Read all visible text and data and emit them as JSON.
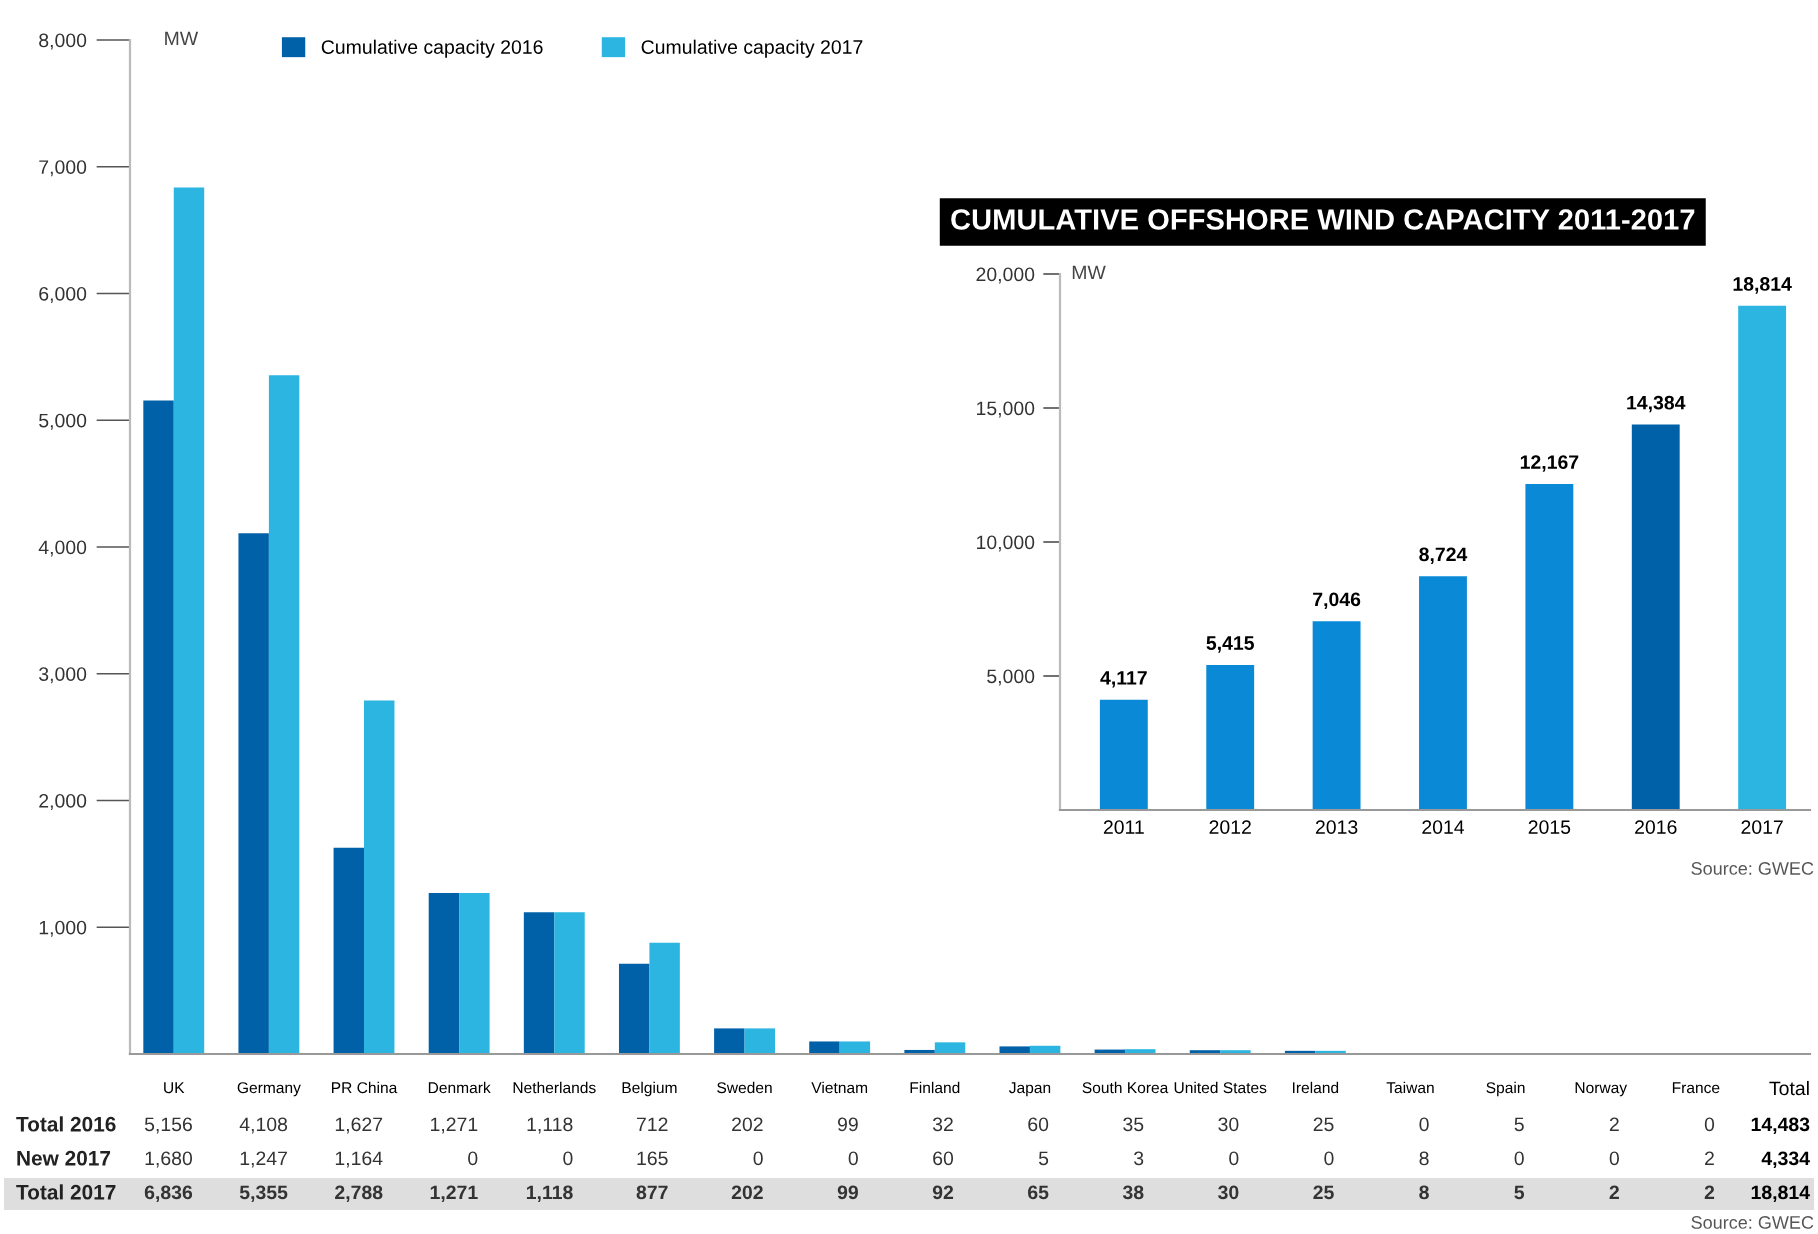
{
  "chart_data": [
    {
      "type": "bar",
      "ylabel": "MW",
      "categories": [
        "UK",
        "Germany",
        "PR China",
        "Denmark",
        "Netherlands",
        "Belgium",
        "Sweden",
        "Vietnam",
        "Finland",
        "Japan",
        "South Korea",
        "United States",
        "Ireland",
        "Taiwan",
        "Spain",
        "Norway",
        "France"
      ],
      "series": [
        {
          "name": "Cumulative capacity 2016",
          "color": "#0060a8",
          "values": [
            5156,
            4108,
            1627,
            1271,
            1118,
            712,
            202,
            99,
            32,
            60,
            35,
            30,
            25,
            0,
            5,
            2,
            0
          ],
          "value_labels": [
            "5,156",
            "4,108",
            "1,627",
            "1,271",
            "1,118",
            "712",
            "202",
            "99",
            "32",
            "60",
            "35",
            "30",
            "25",
            "0",
            "5",
            "2",
            "0"
          ]
        },
        {
          "name": "Cumulative capacity 2017",
          "color": "#2bb5e0",
          "values": [
            6836,
            5355,
            2788,
            1271,
            1118,
            877,
            202,
            99,
            92,
            65,
            38,
            30,
            25,
            8,
            5,
            2,
            2
          ],
          "value_labels": [
            "6,836",
            "5,355",
            "2,788",
            "1,271",
            "1,118",
            "877",
            "202",
            "99",
            "92",
            "65",
            "38",
            "30",
            "25",
            "8",
            "5",
            "2",
            "2"
          ]
        }
      ],
      "ylim": [
        0,
        8000
      ],
      "yticks": [
        {
          "value": 1000,
          "label": "1,000"
        },
        {
          "value": 2000,
          "label": "2,000"
        },
        {
          "value": 3000,
          "label": "3,000"
        },
        {
          "value": 4000,
          "label": "4,000"
        },
        {
          "value": 5000,
          "label": "5,000"
        },
        {
          "value": 6000,
          "label": "6,000"
        },
        {
          "value": 7000,
          "label": "7,000"
        },
        {
          "value": 8000,
          "label": "8,000"
        }
      ],
      "legend": "top",
      "grid": false,
      "annotations": [
        "Total 2016",
        "New 2017",
        "Total 2017",
        "Total",
        "14,483",
        "4,334",
        "18,814",
        "Source: GWEC",
        "1,680",
        "1,247",
        "1,164",
        "0",
        "0",
        "165",
        "0",
        "0",
        "60",
        "5",
        "3",
        "0",
        "0",
        "8",
        "0",
        "0",
        "2"
      ]
    },
    {
      "type": "bar",
      "title": "CUMULATIVE OFFSHORE WIND CAPACITY 2011-2017",
      "ylabel": "MW",
      "categories": [
        "2011",
        "2012",
        "2013",
        "2014",
        "2015",
        "2016",
        "2017"
      ],
      "values": [
        4117,
        5415,
        7046,
        8724,
        12167,
        14384,
        18814
      ],
      "colors": [
        "#0a8ad6",
        "#0a8ad6",
        "#0a8ad6",
        "#0a8ad6",
        "#0a8ad6",
        "#0060a8",
        "#2bb5e0"
      ],
      "ylim": [
        0,
        20000
      ],
      "yticks": [
        {
          "value": 5000,
          "label": "5,000"
        },
        {
          "value": 10000,
          "label": "10,000"
        },
        {
          "value": 15000,
          "label": "15,000"
        },
        {
          "value": 20000,
          "label": "20,000"
        }
      ],
      "value_labels": [
        "4,117",
        "5,415",
        "7,046",
        "8,724",
        "12,167",
        "14,384",
        "18,814"
      ],
      "grid": false,
      "annotations": [
        "Source: GWEC"
      ]
    }
  ]
}
